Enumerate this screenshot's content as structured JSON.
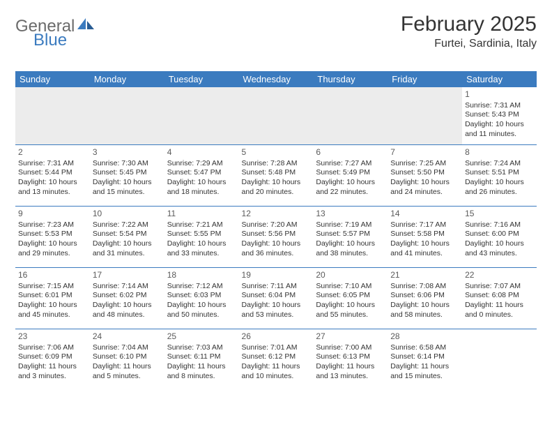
{
  "logo": {
    "textA": "General",
    "textB": "Blue"
  },
  "title": "February 2025",
  "subtitle": "Furtei, Sardinia, Italy",
  "colors": {
    "header_bg": "#3b7bbf",
    "header_text": "#ffffff",
    "empty_bg": "#ececec",
    "text": "#333333",
    "logo_gray": "#6b6b6b",
    "logo_blue": "#3b7bbf"
  },
  "dayHeaders": [
    "Sunday",
    "Monday",
    "Tuesday",
    "Wednesday",
    "Thursday",
    "Friday",
    "Saturday"
  ],
  "weeks": [
    [
      null,
      null,
      null,
      null,
      null,
      null,
      {
        "n": "1",
        "sr": "Sunrise: 7:31 AM",
        "ss": "Sunset: 5:43 PM",
        "dl": "Daylight: 10 hours and 11 minutes."
      }
    ],
    [
      {
        "n": "2",
        "sr": "Sunrise: 7:31 AM",
        "ss": "Sunset: 5:44 PM",
        "dl": "Daylight: 10 hours and 13 minutes."
      },
      {
        "n": "3",
        "sr": "Sunrise: 7:30 AM",
        "ss": "Sunset: 5:45 PM",
        "dl": "Daylight: 10 hours and 15 minutes."
      },
      {
        "n": "4",
        "sr": "Sunrise: 7:29 AM",
        "ss": "Sunset: 5:47 PM",
        "dl": "Daylight: 10 hours and 18 minutes."
      },
      {
        "n": "5",
        "sr": "Sunrise: 7:28 AM",
        "ss": "Sunset: 5:48 PM",
        "dl": "Daylight: 10 hours and 20 minutes."
      },
      {
        "n": "6",
        "sr": "Sunrise: 7:27 AM",
        "ss": "Sunset: 5:49 PM",
        "dl": "Daylight: 10 hours and 22 minutes."
      },
      {
        "n": "7",
        "sr": "Sunrise: 7:25 AM",
        "ss": "Sunset: 5:50 PM",
        "dl": "Daylight: 10 hours and 24 minutes."
      },
      {
        "n": "8",
        "sr": "Sunrise: 7:24 AM",
        "ss": "Sunset: 5:51 PM",
        "dl": "Daylight: 10 hours and 26 minutes."
      }
    ],
    [
      {
        "n": "9",
        "sr": "Sunrise: 7:23 AM",
        "ss": "Sunset: 5:53 PM",
        "dl": "Daylight: 10 hours and 29 minutes."
      },
      {
        "n": "10",
        "sr": "Sunrise: 7:22 AM",
        "ss": "Sunset: 5:54 PM",
        "dl": "Daylight: 10 hours and 31 minutes."
      },
      {
        "n": "11",
        "sr": "Sunrise: 7:21 AM",
        "ss": "Sunset: 5:55 PM",
        "dl": "Daylight: 10 hours and 33 minutes."
      },
      {
        "n": "12",
        "sr": "Sunrise: 7:20 AM",
        "ss": "Sunset: 5:56 PM",
        "dl": "Daylight: 10 hours and 36 minutes."
      },
      {
        "n": "13",
        "sr": "Sunrise: 7:19 AM",
        "ss": "Sunset: 5:57 PM",
        "dl": "Daylight: 10 hours and 38 minutes."
      },
      {
        "n": "14",
        "sr": "Sunrise: 7:17 AM",
        "ss": "Sunset: 5:58 PM",
        "dl": "Daylight: 10 hours and 41 minutes."
      },
      {
        "n": "15",
        "sr": "Sunrise: 7:16 AM",
        "ss": "Sunset: 6:00 PM",
        "dl": "Daylight: 10 hours and 43 minutes."
      }
    ],
    [
      {
        "n": "16",
        "sr": "Sunrise: 7:15 AM",
        "ss": "Sunset: 6:01 PM",
        "dl": "Daylight: 10 hours and 45 minutes."
      },
      {
        "n": "17",
        "sr": "Sunrise: 7:14 AM",
        "ss": "Sunset: 6:02 PM",
        "dl": "Daylight: 10 hours and 48 minutes."
      },
      {
        "n": "18",
        "sr": "Sunrise: 7:12 AM",
        "ss": "Sunset: 6:03 PM",
        "dl": "Daylight: 10 hours and 50 minutes."
      },
      {
        "n": "19",
        "sr": "Sunrise: 7:11 AM",
        "ss": "Sunset: 6:04 PM",
        "dl": "Daylight: 10 hours and 53 minutes."
      },
      {
        "n": "20",
        "sr": "Sunrise: 7:10 AM",
        "ss": "Sunset: 6:05 PM",
        "dl": "Daylight: 10 hours and 55 minutes."
      },
      {
        "n": "21",
        "sr": "Sunrise: 7:08 AM",
        "ss": "Sunset: 6:06 PM",
        "dl": "Daylight: 10 hours and 58 minutes."
      },
      {
        "n": "22",
        "sr": "Sunrise: 7:07 AM",
        "ss": "Sunset: 6:08 PM",
        "dl": "Daylight: 11 hours and 0 minutes."
      }
    ],
    [
      {
        "n": "23",
        "sr": "Sunrise: 7:06 AM",
        "ss": "Sunset: 6:09 PM",
        "dl": "Daylight: 11 hours and 3 minutes."
      },
      {
        "n": "24",
        "sr": "Sunrise: 7:04 AM",
        "ss": "Sunset: 6:10 PM",
        "dl": "Daylight: 11 hours and 5 minutes."
      },
      {
        "n": "25",
        "sr": "Sunrise: 7:03 AM",
        "ss": "Sunset: 6:11 PM",
        "dl": "Daylight: 11 hours and 8 minutes."
      },
      {
        "n": "26",
        "sr": "Sunrise: 7:01 AM",
        "ss": "Sunset: 6:12 PM",
        "dl": "Daylight: 11 hours and 10 minutes."
      },
      {
        "n": "27",
        "sr": "Sunrise: 7:00 AM",
        "ss": "Sunset: 6:13 PM",
        "dl": "Daylight: 11 hours and 13 minutes."
      },
      {
        "n": "28",
        "sr": "Sunrise: 6:58 AM",
        "ss": "Sunset: 6:14 PM",
        "dl": "Daylight: 11 hours and 15 minutes."
      },
      null
    ]
  ]
}
